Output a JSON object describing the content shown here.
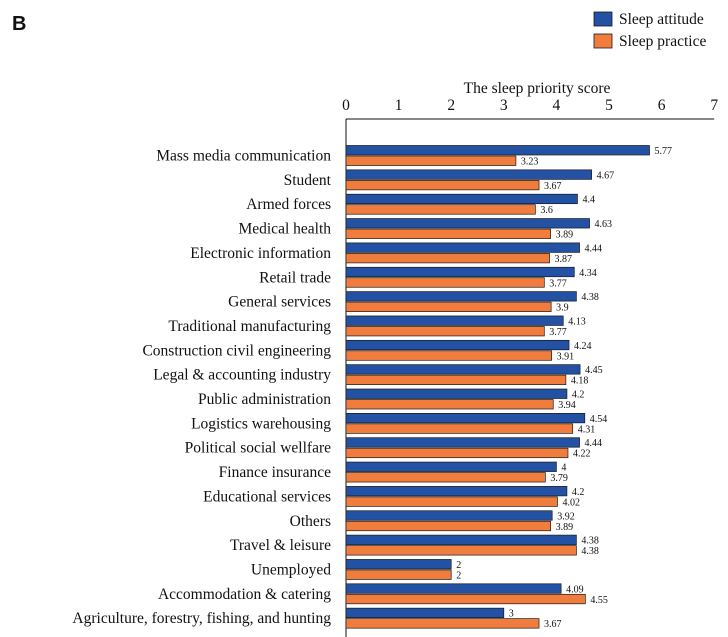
{
  "panel_label": "B",
  "chart_data": {
    "type": "bar",
    "orientation": "horizontal",
    "title": "The sleep priority score",
    "xlim": [
      0,
      7
    ],
    "xticks": [
      0,
      1,
      2,
      3,
      4,
      5,
      6,
      7
    ],
    "legend_position": "top-right",
    "categories": [
      "Mass media communication",
      "Student",
      "Armed forces",
      "Medical health",
      "Electronic information",
      "Retail trade",
      "General services",
      "Traditional manufacturing",
      "Construction civil engineering",
      "Legal & accounting industry",
      "Public administration",
      "Logistics warehousing",
      "Political social wellfare",
      "Finance insurance",
      "Educational services",
      "Others",
      "Travel & leisure",
      "Unemployed",
      "Accommodation & catering",
      "Agriculture, forestry, fishing, and hunting"
    ],
    "series": [
      {
        "name": "Sleep attitude",
        "color": "#2352a5",
        "values": [
          5.77,
          4.67,
          4.4,
          4.63,
          4.44,
          4.34,
          4.38,
          4.13,
          4.24,
          4.45,
          4.2,
          4.54,
          4.44,
          4,
          4.2,
          3.92,
          4.38,
          2,
          4.09,
          3
        ],
        "labels": [
          "5.77",
          "4.67",
          "4.4",
          "4.63",
          "4.44",
          "4.34",
          "4.38",
          "4.13",
          "4.24",
          "4.45",
          "4.2",
          "4.54",
          "4.44",
          "4",
          "4.2",
          "3.92",
          "4.38",
          "2",
          "4.09",
          "3"
        ]
      },
      {
        "name": "Sleep practice",
        "color": "#f07d3e",
        "values": [
          3.23,
          3.67,
          3.6,
          3.89,
          3.87,
          3.77,
          3.9,
          3.77,
          3.91,
          4.18,
          3.94,
          4.31,
          4.22,
          3.79,
          4.02,
          3.89,
          4.38,
          2,
          4.55,
          3.67
        ],
        "labels": [
          "3.23",
          "3.67",
          "3.6",
          "3.89",
          "3.87",
          "3.77",
          "3.9",
          "3.77",
          "3.91",
          "4.18",
          "3.94",
          "4.31",
          "4.22",
          "3.79",
          "4.02",
          "3.89",
          "4.38",
          "2",
          "4.55",
          "3.67"
        ]
      }
    ]
  }
}
